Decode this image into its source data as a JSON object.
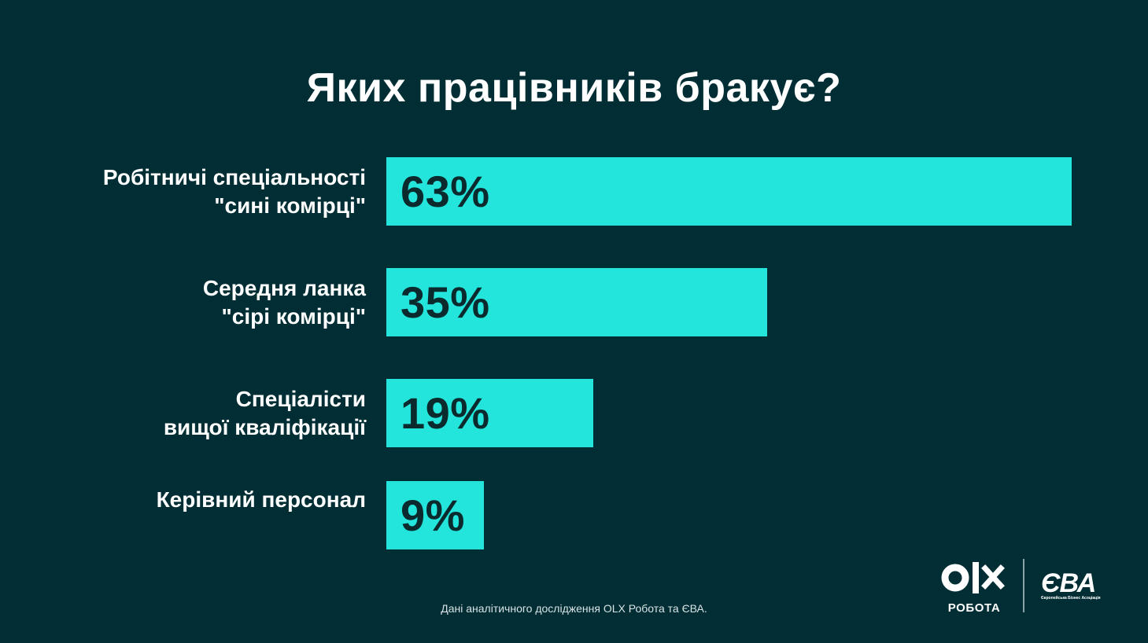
{
  "chart_data": {
    "type": "bar",
    "orientation": "horizontal",
    "title": "Яких працівників бракує?",
    "categories": [
      "Робітничі спеціальності \n\"сині комірці\"",
      "Середня ланка\n\"сірі комірці\"",
      "Спеціалісти \nвищої кваліфікації",
      "Керівний персонал"
    ],
    "values": [
      63,
      35,
      19,
      9
    ],
    "value_labels": [
      "63%",
      "35%",
      "19%",
      "9%"
    ],
    "unit": "%",
    "xlim": [
      0,
      63
    ],
    "grid": false,
    "legend": "none",
    "bar_color": "#23e5db",
    "background_color": "#002e34"
  },
  "footer": {
    "source": "Дані аналітичного дослідження OLX Робота та ЄВА."
  },
  "logos": {
    "olx": {
      "sub_label": "РОБОТА",
      "icon": "olx-logo-icon"
    },
    "eba": {
      "text": "ЄВА",
      "sub_label": "Європейська Бізнес Асоціація"
    }
  }
}
